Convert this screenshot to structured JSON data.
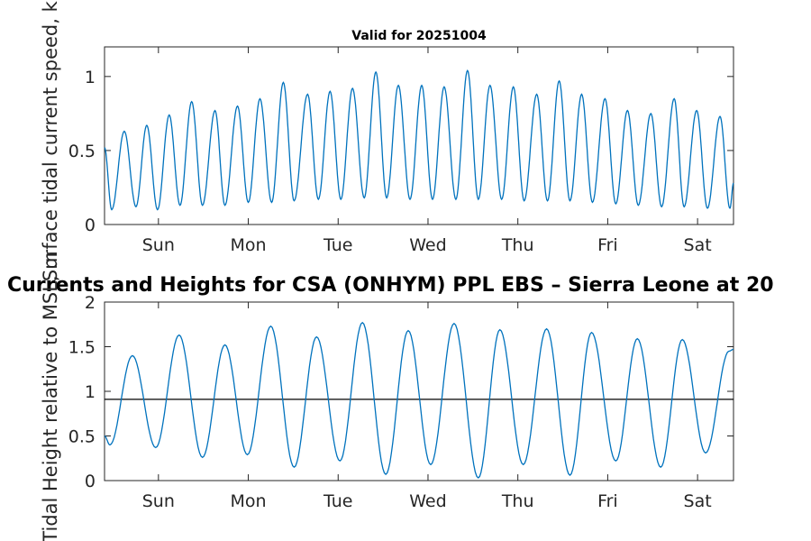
{
  "chart_data": [
    {
      "type": "line",
      "title": "Valid for 20251004",
      "xlabel": "",
      "ylabel": "Surface tidal current speed, kn",
      "x_tick_labels": [
        "Sun",
        "Mon",
        "Tue",
        "Wed",
        "Thu",
        "Fri",
        "Sat"
      ],
      "y_ticks": [
        "0",
        "0.5",
        "1"
      ],
      "ylim": [
        0,
        1.2
      ],
      "x_unit": "days from start of window",
      "xlim": [
        0,
        7
      ],
      "series": [
        {
          "name": "Surface tidal current speed",
          "color": "#0072BD",
          "points": [
            [
              0.0,
              0.52
            ],
            [
              0.08,
              0.1
            ],
            [
              0.22,
              0.63
            ],
            [
              0.35,
              0.12
            ],
            [
              0.47,
              0.67
            ],
            [
              0.59,
              0.1
            ],
            [
              0.72,
              0.74
            ],
            [
              0.84,
              0.13
            ],
            [
              0.97,
              0.83
            ],
            [
              1.09,
              0.13
            ],
            [
              1.23,
              0.77
            ],
            [
              1.34,
              0.13
            ],
            [
              1.48,
              0.8
            ],
            [
              1.6,
              0.15
            ],
            [
              1.73,
              0.85
            ],
            [
              1.86,
              0.15
            ],
            [
              1.99,
              0.96
            ],
            [
              2.11,
              0.16
            ],
            [
              2.26,
              0.88
            ],
            [
              2.38,
              0.17
            ],
            [
              2.51,
              0.9
            ],
            [
              2.63,
              0.17
            ],
            [
              2.76,
              0.92
            ],
            [
              2.89,
              0.18
            ],
            [
              3.02,
              1.03
            ],
            [
              3.14,
              0.18
            ],
            [
              3.27,
              0.94
            ],
            [
              3.4,
              0.17
            ],
            [
              3.53,
              0.94
            ],
            [
              3.65,
              0.17
            ],
            [
              3.78,
              0.93
            ],
            [
              3.91,
              0.17
            ],
            [
              4.04,
              1.04
            ],
            [
              4.16,
              0.17
            ],
            [
              4.29,
              0.94
            ],
            [
              4.42,
              0.17
            ],
            [
              4.55,
              0.93
            ],
            [
              4.67,
              0.16
            ],
            [
              4.81,
              0.88
            ],
            [
              4.93,
              0.16
            ],
            [
              5.06,
              0.97
            ],
            [
              5.18,
              0.16
            ],
            [
              5.31,
              0.88
            ],
            [
              5.43,
              0.15
            ],
            [
              5.57,
              0.85
            ],
            [
              5.69,
              0.14
            ],
            [
              5.82,
              0.77
            ],
            [
              5.94,
              0.13
            ],
            [
              6.08,
              0.75
            ],
            [
              6.2,
              0.12
            ],
            [
              6.34,
              0.85
            ],
            [
              6.45,
              0.12
            ],
            [
              6.59,
              0.77
            ],
            [
              6.71,
              0.11
            ],
            [
              6.85,
              0.73
            ],
            [
              6.96,
              0.11
            ],
            [
              7.0,
              0.28
            ]
          ]
        }
      ]
    },
    {
      "type": "line",
      "title": "Currents and Heights for CSA (ONHYM) PPL EBS  – Sierra Leone at 20",
      "xlabel": "",
      "ylabel": "Tidal Height relative to MSL, m",
      "x_tick_labels": [
        "Sun",
        "Mon",
        "Tue",
        "Wed",
        "Thu",
        "Fri",
        "Sat"
      ],
      "y_ticks": [
        "0",
        "0.5",
        "1",
        "1.5",
        "2"
      ],
      "ylim": [
        0,
        2
      ],
      "x_unit": "days from start of window",
      "xlim": [
        0,
        7
      ],
      "reference_line": 0.91,
      "series": [
        {
          "name": "Tidal height",
          "color": "#0072BD",
          "points": [
            [
              0.0,
              0.5
            ],
            [
              0.06,
              0.4
            ],
            [
              0.31,
              1.4
            ],
            [
              0.57,
              0.37
            ],
            [
              0.83,
              1.63
            ],
            [
              1.09,
              0.26
            ],
            [
              1.34,
              1.52
            ],
            [
              1.59,
              0.29
            ],
            [
              1.85,
              1.73
            ],
            [
              2.11,
              0.15
            ],
            [
              2.36,
              1.61
            ],
            [
              2.62,
              0.22
            ],
            [
              2.87,
              1.77
            ],
            [
              3.13,
              0.07
            ],
            [
              3.38,
              1.68
            ],
            [
              3.63,
              0.18
            ],
            [
              3.89,
              1.76
            ],
            [
              4.16,
              0.03
            ],
            [
              4.4,
              1.69
            ],
            [
              4.66,
              0.18
            ],
            [
              4.92,
              1.7
            ],
            [
              5.18,
              0.06
            ],
            [
              5.42,
              1.66
            ],
            [
              5.69,
              0.22
            ],
            [
              5.93,
              1.59
            ],
            [
              6.19,
              0.15
            ],
            [
              6.43,
              1.58
            ],
            [
              6.69,
              0.31
            ],
            [
              6.95,
              1.45
            ],
            [
              7.0,
              1.47
            ]
          ]
        }
      ]
    }
  ]
}
